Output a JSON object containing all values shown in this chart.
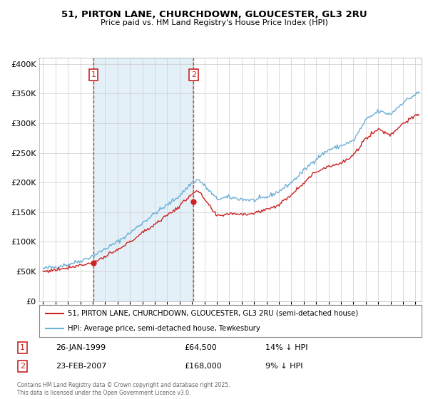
{
  "title_line1": "51, PIRTON LANE, CHURCHDOWN, GLOUCESTER, GL3 2RU",
  "title_line2": "Price paid vs. HM Land Registry's House Price Index (HPI)",
  "legend_line1": "51, PIRTON LANE, CHURCHDOWN, GLOUCESTER, GL3 2RU (semi-detached house)",
  "legend_line2": "HPI: Average price, semi-detached house, Tewkesbury",
  "footnote": "Contains HM Land Registry data © Crown copyright and database right 2025.\nThis data is licensed under the Open Government Licence v3.0.",
  "purchase1_date": "26-JAN-1999",
  "purchase1_price": 64500,
  "purchase1_year": 1999.07,
  "purchase1_hpi": "14% ↓ HPI",
  "purchase2_date": "23-FEB-2007",
  "purchase2_price": 168000,
  "purchase2_year": 2007.13,
  "purchase2_hpi": "9% ↓ HPI",
  "hpi_color": "#6baed6",
  "price_color": "#cc2222",
  "vline_color": "#cc2222",
  "shade_color": "#ddeeff",
  "bg_color": "#ffffff",
  "grid_color": "#cccccc",
  "ylim": [
    0,
    410000
  ],
  "yticks": [
    0,
    50000,
    100000,
    150000,
    200000,
    250000,
    300000,
    350000,
    400000
  ],
  "xlim_start": 1994.7,
  "xlim_end": 2025.5
}
